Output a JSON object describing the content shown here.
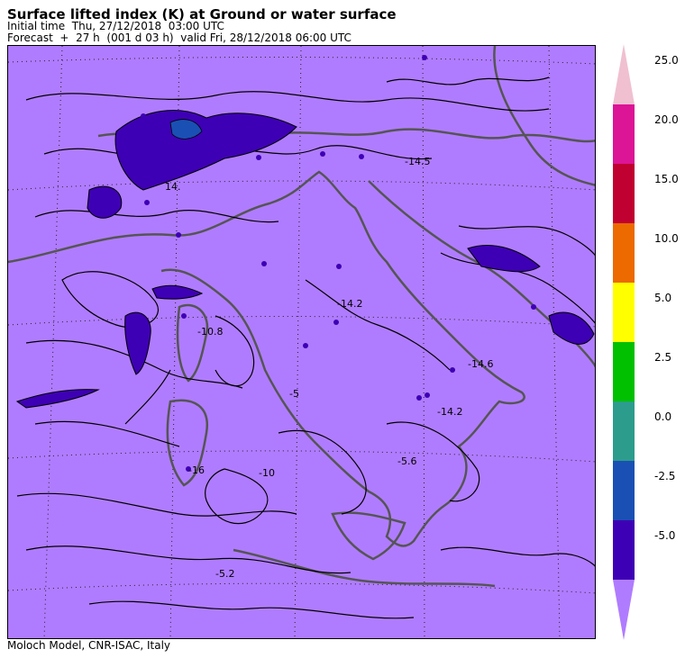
{
  "header": {
    "title": "Surface lifted index (K) at Ground or water surface",
    "initial_time": "Initial time  Thu, 27/12/2018  03:00 UTC",
    "forecast": "Forecast  +  27 h  (001 d 03 h)  valid Fri, 28/12/2018 06:00 UTC"
  },
  "footer": {
    "credit": "Moloch Model, CNR-ISAC, Italy"
  },
  "map": {
    "background_color": "#b07cff",
    "contour_labels": [
      "14.",
      "-10.8",
      "-14.2",
      "-14.6",
      "-14.2",
      "-5",
      "-5.6",
      "-10",
      "-16",
      "-14.5",
      "-5.2"
    ]
  },
  "colorbar": {
    "colors": [
      "#b07cff",
      "#3e00b4",
      "#1a50b4",
      "#2c9c8c",
      "#00c000",
      "#ffff00",
      "#ec6a00",
      "#c00030",
      "#dc1496",
      "#f0c0d0"
    ],
    "ticks": [
      "-5.0",
      "-2.5",
      "0.0",
      "2.5",
      "5.0",
      "10.0",
      "15.0",
      "20.0",
      "25.0"
    ]
  }
}
